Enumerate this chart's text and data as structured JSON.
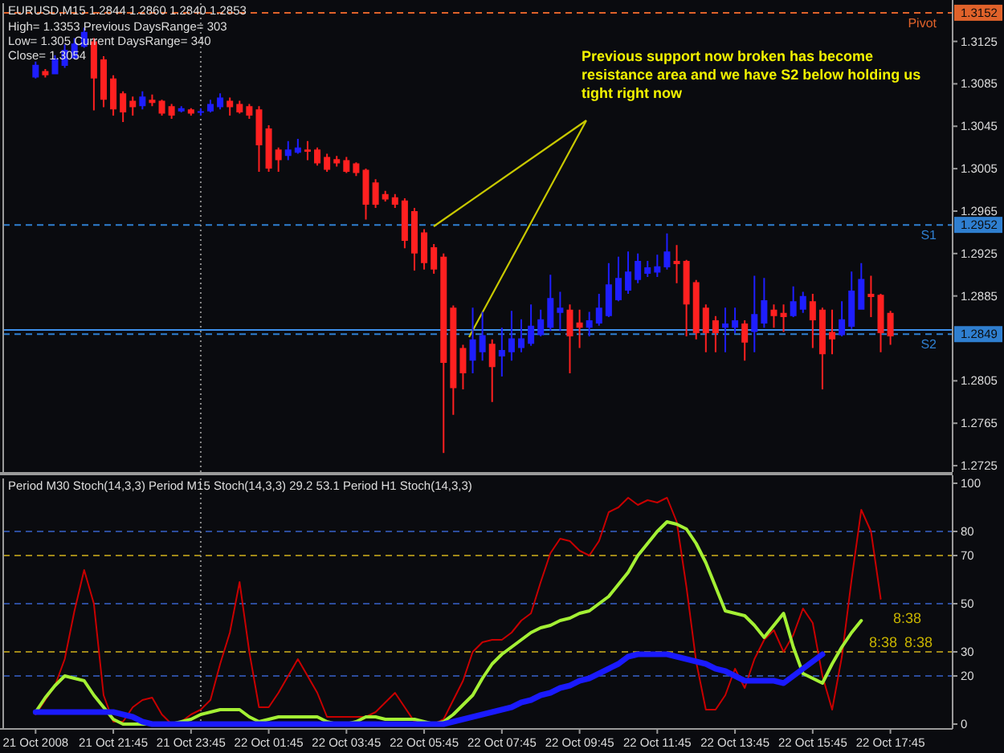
{
  "chart_data": [
    {
      "type": "candlestick",
      "title": "EURUSD,M15 1.2844 1.2860 1.2840 1.2853",
      "annotations": [
        "High= 1.3353 Previous DaysRange= 303",
        "Low= 1.305 Current DaysRange= 340",
        "Close= 1.3054",
        "Previous support now broken has become resistance area and we have S2 below holding us tight right now",
        {
          "text": "1.3152",
          "y": 1.3152
        },
        {
          "text": "1.2952",
          "y": 1.2952
        },
        {
          "text": "1.2849",
          "y": 1.2849
        }
      ],
      "x": [
        "2008-10-21T19:45",
        "2008-10-21T20:00",
        "2008-10-21T20:15",
        "2008-10-21T20:30",
        "2008-10-21T20:45",
        "2008-10-21T21:00",
        "2008-10-21T21:15",
        "2008-10-21T21:30",
        "2008-10-21T21:45",
        "2008-10-21T22:00",
        "2008-10-21T22:15",
        "2008-10-21T22:30",
        "2008-10-21T22:45",
        "2008-10-21T23:00",
        "2008-10-21T23:15",
        "2008-10-21T23:30",
        "2008-10-21T23:45",
        "2008-10-22T00:00",
        "2008-10-22T00:15",
        "2008-10-22T00:30",
        "2008-10-22T00:45",
        "2008-10-22T01:00",
        "2008-10-22T01:15",
        "2008-10-22T01:30",
        "2008-10-22T01:45",
        "2008-10-22T02:00",
        "2008-10-22T02:15",
        "2008-10-22T02:30",
        "2008-10-22T02:45",
        "2008-10-22T03:00",
        "2008-10-22T03:15",
        "2008-10-22T03:30",
        "2008-10-22T03:45",
        "2008-10-22T04:00",
        "2008-10-22T04:15",
        "2008-10-22T04:30",
        "2008-10-22T04:45",
        "2008-10-22T05:00",
        "2008-10-22T05:15",
        "2008-10-22T05:30",
        "2008-10-22T05:45",
        "2008-10-22T06:00",
        "2008-10-22T06:15",
        "2008-10-22T06:30",
        "2008-10-22T06:45",
        "2008-10-22T07:00",
        "2008-10-22T07:15",
        "2008-10-22T07:30",
        "2008-10-22T07:45",
        "2008-10-22T08:00",
        "2008-10-22T08:15",
        "2008-10-22T08:30",
        "2008-10-22T08:45",
        "2008-10-22T09:00",
        "2008-10-22T09:15",
        "2008-10-22T09:30",
        "2008-10-22T09:45",
        "2008-10-22T10:00",
        "2008-10-22T10:15",
        "2008-10-22T10:30",
        "2008-10-22T10:45",
        "2008-10-22T11:00",
        "2008-10-22T11:15",
        "2008-10-22T11:30",
        "2008-10-22T11:45",
        "2008-10-22T12:00",
        "2008-10-22T12:15",
        "2008-10-22T12:30",
        "2008-10-22T12:45",
        "2008-10-22T13:00",
        "2008-10-22T13:15",
        "2008-10-22T13:30",
        "2008-10-22T13:45",
        "2008-10-22T14:00",
        "2008-10-22T14:15",
        "2008-10-22T14:30",
        "2008-10-22T14:45",
        "2008-10-22T15:00",
        "2008-10-22T15:15",
        "2008-10-22T15:30",
        "2008-10-22T15:45",
        "2008-10-22T16:00",
        "2008-10-22T16:15",
        "2008-10-22T16:30",
        "2008-10-22T16:45",
        "2008-10-22T17:00",
        "2008-10-22T17:15",
        "2008-10-22T17:30",
        "2008-10-22T17:45"
      ],
      "ohlc": [
        [
          1.3091,
          1.3106,
          1.309,
          1.3103
        ],
        [
          1.3097,
          1.3099,
          1.3091,
          1.3093
        ],
        [
          1.3094,
          1.3112,
          1.3094,
          1.3109
        ],
        [
          1.3102,
          1.3122,
          1.31,
          1.3117
        ],
        [
          1.3109,
          1.3128,
          1.3108,
          1.3123
        ],
        [
          1.312,
          1.3138,
          1.3119,
          1.3134
        ],
        [
          1.3125,
          1.3128,
          1.306,
          1.309
        ],
        [
          1.3108,
          1.3111,
          1.3063,
          1.307
        ],
        [
          1.309,
          1.3093,
          1.3055,
          1.3061
        ],
        [
          1.3076,
          1.3078,
          1.3049,
          1.3058
        ],
        [
          1.3069,
          1.3073,
          1.3055,
          1.3063
        ],
        [
          1.3064,
          1.3078,
          1.3061,
          1.3073
        ],
        [
          1.307,
          1.3075,
          1.3064,
          1.3067
        ],
        [
          1.3069,
          1.307,
          1.3055,
          1.3057
        ],
        [
          1.3064,
          1.3066,
          1.3052,
          1.3055
        ],
        [
          1.3059,
          1.3064,
          1.3058,
          1.3062
        ],
        [
          1.3061,
          1.3062,
          1.3055,
          1.3057
        ],
        [
          1.3058,
          1.3062,
          1.3055,
          1.3059
        ],
        [
          1.3059,
          1.307,
          1.3058,
          1.3066
        ],
        [
          1.3063,
          1.3076,
          1.3061,
          1.3072
        ],
        [
          1.3069,
          1.3072,
          1.3055,
          1.3063
        ],
        [
          1.3066,
          1.3069,
          1.3057,
          1.3058
        ],
        [
          1.3064,
          1.3066,
          1.3052,
          1.3055
        ],
        [
          1.3061,
          1.3064,
          1.3002,
          1.3027
        ],
        [
          1.3043,
          1.3046,
          1.3002,
          1.3005
        ],
        [
          1.3023,
          1.3025,
          1.3002,
          1.3013
        ],
        [
          1.3017,
          1.3031,
          1.3013,
          1.3023
        ],
        [
          1.302,
          1.3033,
          1.3019,
          1.3025
        ],
        [
          1.3023,
          1.3031,
          1.3013,
          1.3021
        ],
        [
          1.3023,
          1.3025,
          1.3008,
          1.301
        ],
        [
          1.3016,
          1.3019,
          1.3002,
          1.3004
        ],
        [
          1.3014,
          1.3017,
          1.3007,
          1.301
        ],
        [
          1.3013,
          1.3016,
          1.3001,
          1.3002
        ],
        [
          1.301,
          1.3011,
          1.2998,
          1.3001
        ],
        [
          1.3004,
          1.3005,
          1.2957,
          1.2971
        ],
        [
          1.2992,
          1.2995,
          1.2968,
          1.2971
        ],
        [
          1.2981,
          1.2984,
          1.2974,
          1.2976
        ],
        [
          1.2978,
          1.2981,
          1.2968,
          1.2971
        ],
        [
          1.2975,
          1.2977,
          1.293,
          1.2937
        ],
        [
          1.2965,
          1.2968,
          1.2909,
          1.2925
        ],
        [
          1.2945,
          1.2948,
          1.291,
          1.2916
        ],
        [
          1.2931,
          1.2934,
          1.2906,
          1.291
        ],
        [
          1.2922,
          1.2925,
          1.2737,
          1.2822
        ],
        [
          1.2874,
          1.2876,
          1.2773,
          1.2798
        ],
        [
          1.2836,
          1.2839,
          1.2797,
          1.2812
        ],
        [
          1.2824,
          1.2874,
          1.2812,
          1.2844
        ],
        [
          1.2832,
          1.287,
          1.2824,
          1.2848
        ],
        [
          1.284,
          1.2844,
          1.2785,
          1.2818
        ],
        [
          1.2828,
          1.2855,
          1.2809,
          1.2834
        ],
        [
          1.2832,
          1.2871,
          1.2824,
          1.2845
        ],
        [
          1.2836,
          1.2863,
          1.2832,
          1.2845
        ],
        [
          1.284,
          1.2877,
          1.2838,
          1.2857
        ],
        [
          1.2848,
          1.2872,
          1.2847,
          1.2863
        ],
        [
          1.2855,
          1.2905,
          1.2852,
          1.2883
        ],
        [
          1.2869,
          1.2889,
          1.2852,
          1.2874
        ],
        [
          1.2872,
          1.2877,
          1.2812,
          1.2847
        ],
        [
          1.286,
          1.2872,
          1.2836,
          1.2855
        ],
        [
          1.2855,
          1.287,
          1.2847,
          1.2862
        ],
        [
          1.2859,
          1.2887,
          1.2857,
          1.2874
        ],
        [
          1.2866,
          1.2916,
          1.2865,
          1.2896
        ],
        [
          1.2881,
          1.2922,
          1.288,
          1.2902
        ],
        [
          1.289,
          1.2927,
          1.2887,
          1.2908
        ],
        [
          1.29,
          1.2925,
          1.2897,
          1.2918
        ],
        [
          1.2906,
          1.2918,
          1.2903,
          1.2912
        ],
        [
          1.2907,
          1.2924,
          1.2903,
          1.2913
        ],
        [
          1.2912,
          1.2944,
          1.291,
          1.2927
        ],
        [
          1.2918,
          1.2933,
          1.2897,
          1.2915
        ],
        [
          1.2918,
          1.2919,
          1.2847,
          1.2877
        ],
        [
          1.2898,
          1.29,
          1.2844,
          1.285
        ],
        [
          1.2874,
          1.2877,
          1.2832,
          1.285
        ],
        [
          1.2862,
          1.2866,
          1.2832,
          1.285
        ],
        [
          1.2855,
          1.2874,
          1.2832,
          1.2859
        ],
        [
          1.2855,
          1.2874,
          1.285,
          1.2862
        ],
        [
          1.2859,
          1.2862,
          1.2824,
          1.2841
        ],
        [
          1.2851,
          1.2904,
          1.2832,
          1.2868
        ],
        [
          1.2859,
          1.2902,
          1.2855,
          1.2881
        ],
        [
          1.2872,
          1.2877,
          1.2855,
          1.2866
        ],
        [
          1.2869,
          1.2877,
          1.2851,
          1.2865
        ],
        [
          1.2866,
          1.2894,
          1.2865,
          1.288
        ],
        [
          1.2872,
          1.2889,
          1.2869,
          1.2885
        ],
        [
          1.288,
          1.2887,
          1.2836,
          1.2862
        ],
        [
          1.2872,
          1.2874,
          1.2797,
          1.283
        ],
        [
          1.2851,
          1.2872,
          1.283,
          1.2844
        ],
        [
          1.2848,
          1.288,
          1.2847,
          1.2863
        ],
        [
          1.2856,
          1.2908,
          1.2854,
          1.289
        ],
        [
          1.2872,
          1.2916,
          1.2872,
          1.2901
        ],
        [
          1.2887,
          1.2904,
          1.2865,
          1.2884
        ],
        [
          1.2886,
          1.2887,
          1.2832,
          1.285
        ],
        [
          1.2869,
          1.2871,
          1.2839,
          1.2847
        ]
      ],
      "colors": [
        "#1e1eff",
        "#ff2020",
        "#1e1eff",
        "#1e1eff",
        "#1e1eff",
        "#1e1eff",
        "#ff2020",
        "#ff2020",
        "#ff2020",
        "#ff2020",
        "#ff2020",
        "#1e1eff",
        "#ff2020",
        "#ff2020",
        "#ff2020",
        "#1e1eff",
        "#ff2020",
        "#1e1eff",
        "#1e1eff",
        "#1e1eff",
        "#ff2020",
        "#ff2020",
        "#ff2020",
        "#ff2020",
        "#ff2020",
        "#ff2020",
        "#1e1eff",
        "#1e1eff",
        "#ff2020",
        "#ff2020",
        "#ff2020",
        "#ff2020",
        "#ff2020",
        "#ff2020",
        "#ff2020",
        "#ff2020",
        "#ff2020",
        "#ff2020",
        "#ff2020",
        "#ff2020",
        "#ff2020",
        "#ff2020",
        "#ff2020",
        "#ff2020",
        "#ff2020",
        "#1e1eff",
        "#1e1eff",
        "#ff2020",
        "#1e1eff",
        "#1e1eff",
        "#1e1eff",
        "#1e1eff",
        "#1e1eff",
        "#1e1eff",
        "#1e1eff",
        "#ff2020",
        "#ff2020",
        "#1e1eff",
        "#1e1eff",
        "#1e1eff",
        "#1e1eff",
        "#1e1eff",
        "#1e1eff",
        "#1e1eff",
        "#1e1eff",
        "#1e1eff",
        "#ff2020",
        "#ff2020",
        "#ff2020",
        "#ff2020",
        "#ff2020",
        "#1e1eff",
        "#1e1eff",
        "#ff2020",
        "#1e1eff",
        "#1e1eff",
        "#ff2020",
        "#ff2020",
        "#1e1eff",
        "#1e1eff",
        "#ff2020",
        "#ff2020",
        "#ff2020",
        "#1e1eff",
        "#1e1eff",
        "#1e1eff",
        "#ff2020",
        "#ff2020",
        "#ff2020"
      ],
      "xlim": [
        "2008-10-21T18:55",
        "2008-10-22T19:21"
      ],
      "ylim": [
        1.2719,
        1.3161
      ],
      "yticks": [
        1.3125,
        1.3085,
        1.3045,
        1.3005,
        1.2965,
        1.2925,
        1.2885,
        1.2805,
        1.2765,
        1.2725
      ],
      "ref_lines": [
        {
          "axis": "y",
          "value": 1.3152,
          "label": "Pivot",
          "color": "#e0622a",
          "line_style": "dashed"
        },
        {
          "axis": "y",
          "value": 1.2952,
          "label": "S1",
          "color": "#2f7fd0",
          "line_style": "dashed"
        },
        {
          "axis": "y",
          "value": 1.2849,
          "label": "S2",
          "color": "#2f7fd0",
          "line_style": "dashed"
        },
        {
          "axis": "y",
          "value": 1.2853,
          "color": "#3d8ee8",
          "line_style": "solid"
        },
        {
          "axis": "x",
          "value": "2008-10-22T00:00",
          "color": "#8a8a8a",
          "line_style": "dotted"
        }
      ],
      "tick_labels": "y"
    },
    {
      "type": "line",
      "title": "Period M30 Stoch(14,3,3) Period M15 Stoch(14,3,3) 29.2 53.1 Period H1 Stoch(14,3,3)",
      "x": [
        "2008-10-21T19:45",
        "2008-10-21T20:00",
        "2008-10-21T20:15",
        "2008-10-21T20:30",
        "2008-10-21T20:45",
        "2008-10-21T21:00",
        "2008-10-21T21:15",
        "2008-10-21T21:30",
        "2008-10-21T21:45",
        "2008-10-21T22:00",
        "2008-10-21T22:15",
        "2008-10-21T22:30",
        "2008-10-21T22:45",
        "2008-10-21T23:00",
        "2008-10-21T23:15",
        "2008-10-21T23:30",
        "2008-10-21T23:45",
        "2008-10-22T00:00",
        "2008-10-22T00:15",
        "2008-10-22T00:30",
        "2008-10-22T00:45",
        "2008-10-22T01:00",
        "2008-10-22T01:15",
        "2008-10-22T01:30",
        "2008-10-22T01:45",
        "2008-10-22T02:00",
        "2008-10-22T02:15",
        "2008-10-22T02:30",
        "2008-10-22T02:45",
        "2008-10-22T03:00",
        "2008-10-22T03:15",
        "2008-10-22T03:30",
        "2008-10-22T03:45",
        "2008-10-22T04:00",
        "2008-10-22T04:15",
        "2008-10-22T04:30",
        "2008-10-22T04:45",
        "2008-10-22T05:00",
        "2008-10-22T05:15",
        "2008-10-22T05:30",
        "2008-10-22T05:45",
        "2008-10-22T06:00",
        "2008-10-22T06:15",
        "2008-10-22T06:30",
        "2008-10-22T06:45",
        "2008-10-22T07:00",
        "2008-10-22T07:15",
        "2008-10-22T07:30",
        "2008-10-22T07:45",
        "2008-10-22T08:00",
        "2008-10-22T08:15",
        "2008-10-22T08:30",
        "2008-10-22T08:45",
        "2008-10-22T09:00",
        "2008-10-22T09:15",
        "2008-10-22T09:30",
        "2008-10-22T09:45",
        "2008-10-22T10:00",
        "2008-10-22T10:15",
        "2008-10-22T10:30",
        "2008-10-22T10:45",
        "2008-10-22T11:00",
        "2008-10-22T11:15",
        "2008-10-22T11:30",
        "2008-10-22T11:45",
        "2008-10-22T12:00",
        "2008-10-22T12:15",
        "2008-10-22T12:30",
        "2008-10-22T12:45",
        "2008-10-22T13:00",
        "2008-10-22T13:15",
        "2008-10-22T13:30",
        "2008-10-22T13:45",
        "2008-10-22T14:00",
        "2008-10-22T14:15",
        "2008-10-22T14:30",
        "2008-10-22T14:45",
        "2008-10-22T15:00",
        "2008-10-22T15:15",
        "2008-10-22T15:30",
        "2008-10-22T15:45",
        "2008-10-22T16:00",
        "2008-10-22T16:15",
        "2008-10-22T16:30",
        "2008-10-22T16:45",
        "2008-10-22T17:00",
        "2008-10-22T17:15",
        "2008-10-22T17:30"
      ],
      "series": [
        {
          "color": "#c80000",
          "values": [
            4,
            10,
            16,
            27,
            47,
            64,
            50,
            12,
            1,
            1,
            7,
            10,
            11,
            4,
            0,
            1,
            4,
            6,
            10,
            25,
            38,
            59,
            30,
            7,
            7,
            13,
            20,
            27,
            20,
            13,
            3,
            3,
            3,
            3,
            3,
            5,
            9,
            13,
            7,
            1,
            0,
            0,
            2,
            10,
            18,
            30,
            34,
            35,
            35,
            38,
            43,
            46,
            59,
            71,
            77,
            76,
            72,
            70,
            76,
            88,
            90,
            94,
            91,
            93,
            92,
            94,
            84,
            57,
            26,
            6,
            6,
            12,
            23,
            15,
            27,
            35,
            39,
            30,
            37,
            48,
            42,
            20,
            6,
            28,
            60,
            89,
            80,
            52
          ]
        },
        {
          "color": "#a4f034",
          "values": [
            5,
            11,
            16,
            20,
            19,
            18,
            12,
            7,
            2,
            0,
            0,
            0,
            0,
            0,
            0,
            1,
            2,
            4,
            5,
            6,
            6,
            6,
            3,
            1,
            2,
            3,
            3,
            3,
            3,
            3,
            1,
            0,
            0,
            1,
            3,
            3,
            2,
            2,
            2,
            2,
            1,
            0,
            1,
            4,
            8,
            12,
            19,
            25,
            29,
            32,
            35,
            38,
            40,
            41,
            43,
            44,
            46,
            47,
            50,
            53,
            58,
            63,
            70,
            75,
            80,
            84,
            83,
            81,
            75,
            67,
            57,
            47,
            46,
            45,
            41,
            36,
            41,
            46,
            32,
            21,
            19,
            17,
            25,
            32,
            38,
            43,
            null,
            null
          ]
        },
        {
          "color": "#1a1aff",
          "values": [
            5,
            5,
            5,
            5,
            5,
            5,
            5,
            5,
            5,
            4,
            3,
            1,
            0,
            0,
            0,
            0,
            0,
            0,
            0,
            0,
            0,
            0,
            0,
            0,
            0,
            0,
            0,
            0,
            0,
            0,
            0,
            0,
            0,
            0,
            0,
            0,
            0,
            0,
            0,
            0,
            0,
            0,
            0,
            1,
            2,
            3,
            4,
            5,
            6,
            7,
            9,
            10,
            12,
            13,
            15,
            16,
            18,
            19,
            21,
            23,
            25,
            28,
            29,
            29,
            29,
            29,
            28,
            27,
            26,
            25,
            23,
            22,
            20,
            18,
            18,
            18,
            18,
            17,
            20,
            23,
            26,
            29,
            null,
            null,
            null,
            null,
            null,
            null
          ]
        }
      ],
      "xlim": [
        "2008-10-21T18:55",
        "2008-10-22T19:21"
      ],
      "xticks": [
        {
          "value": "2008-10-21T19:45",
          "label": "21 Oct 2008"
        },
        {
          "value": "2008-10-21T21:45",
          "label": "21 Oct 21:45"
        },
        {
          "value": "2008-10-21T23:45",
          "label": "21 Oct 23:45"
        },
        {
          "value": "2008-10-22T01:45",
          "label": "22 Oct 01:45"
        },
        {
          "value": "2008-10-22T03:45",
          "label": "22 Oct 03:45"
        },
        {
          "value": "2008-10-22T05:45",
          "label": "22 Oct 05:45"
        },
        {
          "value": "2008-10-22T07:45",
          "label": "22 Oct 07:45"
        },
        {
          "value": "2008-10-22T09:45",
          "label": "22 Oct 09:45"
        },
        {
          "value": "2008-10-22T11:45",
          "label": "22 Oct 11:45"
        },
        {
          "value": "2008-10-22T13:45",
          "label": "22 Oct 13:45"
        },
        {
          "value": "2008-10-22T15:45",
          "label": "22 Oct 15:45"
        },
        {
          "value": "2008-10-22T17:45",
          "label": "22 Oct 17:45"
        }
      ],
      "ylim": [
        -2,
        102
      ],
      "yticks": [
        100,
        80,
        70,
        50,
        30,
        20,
        0
      ],
      "ref_lines": [
        {
          "axis": "y",
          "value": 80,
          "color": "#2c4c9c",
          "line_style": "dashed"
        },
        {
          "axis": "y",
          "value": 70,
          "color": "#a08818",
          "line_style": "dashed"
        },
        {
          "axis": "y",
          "value": 50,
          "color": "#2c4c9c",
          "line_style": "dashed"
        },
        {
          "axis": "y",
          "value": 30,
          "color": "#a08818",
          "line_style": "dashed"
        },
        {
          "axis": "y",
          "value": 20,
          "color": "#2c4c9c",
          "line_style": "dashed"
        },
        {
          "axis": "x",
          "value": "2008-10-22T00:00",
          "color": "#8a8a8a",
          "line_style": "dotted"
        }
      ],
      "annotations": [
        "8:38",
        "8:38",
        "8:38"
      ]
    }
  ]
}
